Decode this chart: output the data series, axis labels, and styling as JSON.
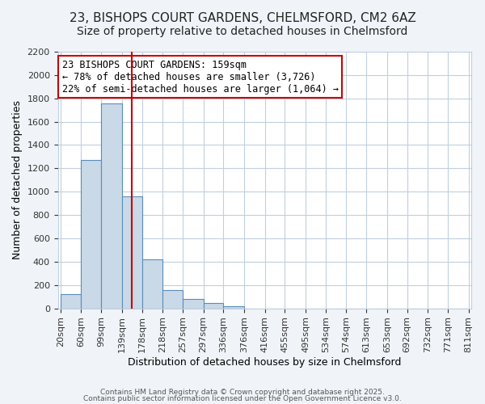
{
  "title_line1": "23, BISHOPS COURT GARDENS, CHELMSFORD, CM2 6AZ",
  "title_line2": "Size of property relative to detached houses in Chelmsford",
  "xlabel": "Distribution of detached houses by size in Chelmsford",
  "ylabel": "Number of detached properties",
  "bin_labels": [
    "20sqm",
    "60sqm",
    "99sqm",
    "139sqm",
    "178sqm",
    "218sqm",
    "257sqm",
    "297sqm",
    "336sqm",
    "376sqm",
    "416sqm",
    "455sqm",
    "495sqm",
    "534sqm",
    "574sqm",
    "613sqm",
    "653sqm",
    "692sqm",
    "732sqm",
    "771sqm",
    "811sqm"
  ],
  "bin_edges": [
    20,
    60,
    99,
    139,
    178,
    218,
    257,
    297,
    336,
    376,
    416,
    455,
    495,
    534,
    574,
    613,
    653,
    692,
    732,
    771,
    811
  ],
  "bar_heights": [
    120,
    1270,
    1760,
    960,
    420,
    155,
    80,
    45,
    20,
    0,
    0,
    0,
    0,
    0,
    0,
    0,
    0,
    0,
    0,
    0
  ],
  "bar_color": "#c9d9e8",
  "bar_edge_color": "#5b8db8",
  "property_size": 159,
  "property_line_color": "#cc0000",
  "annotation_title": "23 BISHOPS COURT GARDENS: 159sqm",
  "annotation_line1": "← 78% of detached houses are smaller (3,726)",
  "annotation_line2": "22% of semi-detached houses are larger (1,064) →",
  "annotation_box_color": "#cc0000",
  "ylim": [
    0,
    2200
  ],
  "yticks": [
    0,
    200,
    400,
    600,
    800,
    1000,
    1200,
    1400,
    1600,
    1800,
    2000,
    2200
  ],
  "footer_line1": "Contains HM Land Registry data © Crown copyright and database right 2025.",
  "footer_line2": "Contains public sector information licensed under the Open Government Licence v3.0.",
  "bg_color": "#f0f4f8",
  "plot_bg_color": "#ffffff",
  "grid_color": "#c0cfe0",
  "title_fontsize": 11,
  "subtitle_fontsize": 10
}
